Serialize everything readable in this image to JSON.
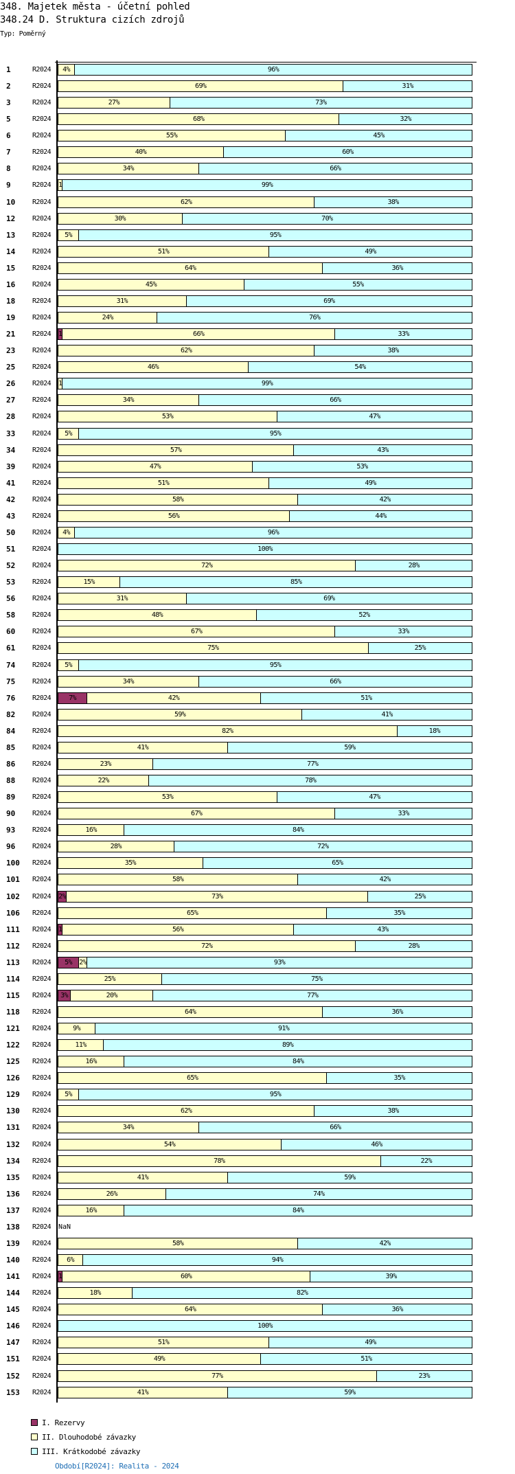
{
  "header": {
    "title": "348. Majetek města - účetní pohled",
    "subtitle": "348.24 D. Struktura cizích zdrojů",
    "type_label": "Typ: Poměrný"
  },
  "chart_data": {
    "type": "bar",
    "orientation": "horizontal",
    "stacked": "percent",
    "xlim": [
      0,
      100
    ],
    "legend_position": "bottom-left",
    "series": [
      {
        "name": "I. Rezervy",
        "color": "#993366"
      },
      {
        "name": "II. Dlouhodobé závazky",
        "color": "#ffffcc"
      },
      {
        "name": "III. Krátkodobé závazky",
        "color": "#ccffff"
      }
    ],
    "rows": [
      {
        "id": "1",
        "period": "R2024",
        "values": [
          0,
          4,
          96
        ]
      },
      {
        "id": "2",
        "period": "R2024",
        "values": [
          0,
          69,
          31
        ]
      },
      {
        "id": "3",
        "period": "R2024",
        "values": [
          0,
          27,
          73
        ]
      },
      {
        "id": "5",
        "period": "R2024",
        "values": [
          0,
          68,
          32
        ]
      },
      {
        "id": "6",
        "period": "R2024",
        "values": [
          0,
          55,
          45
        ]
      },
      {
        "id": "7",
        "period": "R2024",
        "values": [
          0,
          40,
          60
        ]
      },
      {
        "id": "8",
        "period": "R2024",
        "values": [
          0,
          34,
          66
        ]
      },
      {
        "id": "9",
        "period": "R2024",
        "values": [
          0,
          1,
          99
        ]
      },
      {
        "id": "10",
        "period": "R2024",
        "values": [
          0,
          62,
          38
        ]
      },
      {
        "id": "12",
        "period": "R2024",
        "values": [
          0,
          30,
          70
        ]
      },
      {
        "id": "13",
        "period": "R2024",
        "values": [
          0,
          5,
          95
        ]
      },
      {
        "id": "14",
        "period": "R2024",
        "values": [
          0,
          51,
          49
        ]
      },
      {
        "id": "15",
        "period": "R2024",
        "values": [
          0,
          64,
          36
        ]
      },
      {
        "id": "16",
        "period": "R2024",
        "values": [
          0,
          45,
          55
        ]
      },
      {
        "id": "18",
        "period": "R2024",
        "values": [
          0,
          31,
          69
        ]
      },
      {
        "id": "19",
        "period": "R2024",
        "values": [
          0,
          24,
          76
        ]
      },
      {
        "id": "21",
        "period": "R2024",
        "values": [
          1,
          66,
          33
        ]
      },
      {
        "id": "23",
        "period": "R2024",
        "values": [
          0,
          62,
          38
        ]
      },
      {
        "id": "25",
        "period": "R2024",
        "values": [
          0,
          46,
          54
        ]
      },
      {
        "id": "26",
        "period": "R2024",
        "values": [
          0,
          1,
          99
        ]
      },
      {
        "id": "27",
        "period": "R2024",
        "values": [
          0,
          34,
          66
        ]
      },
      {
        "id": "28",
        "period": "R2024",
        "values": [
          0,
          53,
          47
        ]
      },
      {
        "id": "33",
        "period": "R2024",
        "values": [
          0,
          5,
          95
        ]
      },
      {
        "id": "34",
        "period": "R2024",
        "values": [
          0,
          57,
          43
        ]
      },
      {
        "id": "39",
        "period": "R2024",
        "values": [
          0,
          47,
          53
        ]
      },
      {
        "id": "41",
        "period": "R2024",
        "values": [
          0,
          51,
          49
        ]
      },
      {
        "id": "42",
        "period": "R2024",
        "values": [
          0,
          58,
          42
        ]
      },
      {
        "id": "43",
        "period": "R2024",
        "values": [
          0,
          56,
          44
        ]
      },
      {
        "id": "50",
        "period": "R2024",
        "values": [
          0,
          4,
          96
        ]
      },
      {
        "id": "51",
        "period": "R2024",
        "values": [
          0,
          0,
          100
        ]
      },
      {
        "id": "52",
        "period": "R2024",
        "values": [
          0,
          72,
          28
        ]
      },
      {
        "id": "53",
        "period": "R2024",
        "values": [
          0,
          15,
          85
        ]
      },
      {
        "id": "56",
        "period": "R2024",
        "values": [
          0,
          31,
          69
        ]
      },
      {
        "id": "58",
        "period": "R2024",
        "values": [
          0,
          48,
          52
        ]
      },
      {
        "id": "60",
        "period": "R2024",
        "values": [
          0,
          67,
          33
        ]
      },
      {
        "id": "61",
        "period": "R2024",
        "values": [
          0,
          75,
          25
        ]
      },
      {
        "id": "74",
        "period": "R2024",
        "values": [
          0,
          5,
          95
        ]
      },
      {
        "id": "75",
        "period": "R2024",
        "values": [
          0,
          34,
          66
        ]
      },
      {
        "id": "76",
        "period": "R2024",
        "values": [
          7,
          42,
          51
        ]
      },
      {
        "id": "82",
        "period": "R2024",
        "values": [
          0,
          59,
          41
        ]
      },
      {
        "id": "84",
        "period": "R2024",
        "values": [
          0,
          82,
          18
        ]
      },
      {
        "id": "85",
        "period": "R2024",
        "values": [
          0,
          41,
          59
        ]
      },
      {
        "id": "86",
        "period": "R2024",
        "values": [
          0,
          23,
          77
        ]
      },
      {
        "id": "88",
        "period": "R2024",
        "values": [
          0,
          22,
          78
        ]
      },
      {
        "id": "89",
        "period": "R2024",
        "values": [
          0,
          53,
          47
        ]
      },
      {
        "id": "90",
        "period": "R2024",
        "values": [
          0,
          67,
          33
        ]
      },
      {
        "id": "93",
        "period": "R2024",
        "values": [
          0,
          16,
          84
        ]
      },
      {
        "id": "96",
        "period": "R2024",
        "values": [
          0,
          28,
          72
        ]
      },
      {
        "id": "100",
        "period": "R2024",
        "values": [
          0,
          35,
          65
        ]
      },
      {
        "id": "101",
        "period": "R2024",
        "values": [
          0,
          58,
          42
        ]
      },
      {
        "id": "102",
        "period": "R2024",
        "values": [
          2,
          73,
          25
        ]
      },
      {
        "id": "106",
        "period": "R2024",
        "values": [
          0,
          65,
          35
        ]
      },
      {
        "id": "111",
        "period": "R2024",
        "values": [
          1,
          56,
          43
        ]
      },
      {
        "id": "112",
        "period": "R2024",
        "values": [
          0,
          72,
          28
        ]
      },
      {
        "id": "113",
        "period": "R2024",
        "values": [
          5,
          2,
          93
        ]
      },
      {
        "id": "114",
        "period": "R2024",
        "values": [
          0,
          25,
          75
        ]
      },
      {
        "id": "115",
        "period": "R2024",
        "values": [
          3,
          20,
          77
        ]
      },
      {
        "id": "118",
        "period": "R2024",
        "values": [
          0,
          64,
          36
        ]
      },
      {
        "id": "121",
        "period": "R2024",
        "values": [
          0,
          9,
          91
        ]
      },
      {
        "id": "122",
        "period": "R2024",
        "values": [
          0,
          11,
          89
        ]
      },
      {
        "id": "125",
        "period": "R2024",
        "values": [
          0,
          16,
          84
        ]
      },
      {
        "id": "126",
        "period": "R2024",
        "values": [
          0,
          65,
          35
        ]
      },
      {
        "id": "129",
        "period": "R2024",
        "values": [
          0,
          5,
          95
        ]
      },
      {
        "id": "130",
        "period": "R2024",
        "values": [
          0,
          62,
          38
        ]
      },
      {
        "id": "131",
        "period": "R2024",
        "values": [
          0,
          34,
          66
        ]
      },
      {
        "id": "132",
        "period": "R2024",
        "values": [
          0,
          54,
          46
        ]
      },
      {
        "id": "134",
        "period": "R2024",
        "values": [
          0,
          78,
          22
        ]
      },
      {
        "id": "135",
        "period": "R2024",
        "values": [
          0,
          41,
          59
        ]
      },
      {
        "id": "136",
        "period": "R2024",
        "values": [
          0,
          26,
          74
        ]
      },
      {
        "id": "137",
        "period": "R2024",
        "values": [
          0,
          16,
          84
        ]
      },
      {
        "id": "138",
        "period": "R2024",
        "values": null,
        "text": "NaN"
      },
      {
        "id": "139",
        "period": "R2024",
        "values": [
          0,
          58,
          42
        ]
      },
      {
        "id": "140",
        "period": "R2024",
        "values": [
          0,
          6,
          94
        ]
      },
      {
        "id": "141",
        "period": "R2024",
        "values": [
          1,
          60,
          39
        ]
      },
      {
        "id": "144",
        "period": "R2024",
        "values": [
          0,
          18,
          82
        ]
      },
      {
        "id": "145",
        "period": "R2024",
        "values": [
          0,
          64,
          36
        ]
      },
      {
        "id": "146",
        "period": "R2024",
        "values": [
          0,
          0,
          100
        ]
      },
      {
        "id": "147",
        "period": "R2024",
        "values": [
          0,
          51,
          49
        ]
      },
      {
        "id": "151",
        "period": "R2024",
        "values": [
          0,
          49,
          51
        ]
      },
      {
        "id": "152",
        "period": "R2024",
        "values": [
          0,
          77,
          23
        ]
      },
      {
        "id": "153",
        "period": "R2024",
        "values": [
          0,
          41,
          59
        ]
      }
    ]
  },
  "footer": {
    "period_note": "Období[R2024]: Realita - 2024"
  }
}
